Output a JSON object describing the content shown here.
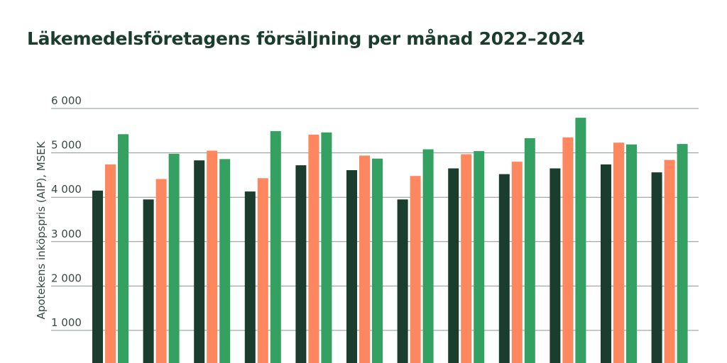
{
  "chart_data": {
    "type": "bar",
    "title": "Läkemedelsföretagens försäljning per månad 2022–2024",
    "ylabel": "Apotekens inköpspris (AIP), MSEK",
    "xlabel": "",
    "ylim": [
      0,
      6000
    ],
    "yticks": [
      0,
      1000,
      2000,
      3000,
      4000,
      5000,
      6000
    ],
    "ytick_labels": [
      "",
      "1 000",
      "2 000",
      "3 000",
      "4 000",
      "5 000",
      "6 000"
    ],
    "grid": true,
    "categories": [
      "",
      "",
      "",
      "",
      "",
      "",
      "",
      "",
      "",
      "",
      "",
      ""
    ],
    "series": [
      {
        "color": "#1b3d2f",
        "values": [
          4150,
          3950,
          4830,
          4130,
          4720,
          4610,
          3950,
          4650,
          4520,
          4650,
          4740,
          4560
        ]
      },
      {
        "color": "#ff875f",
        "values": [
          4740,
          4410,
          5050,
          4430,
          5410,
          4940,
          4480,
          4970,
          4800,
          5350,
          5230,
          4840
        ]
      },
      {
        "color": "#34a062",
        "values": [
          5420,
          4980,
          4860,
          5490,
          5460,
          4870,
          5080,
          5040,
          5330,
          5790,
          5190,
          5200
        ]
      }
    ]
  }
}
